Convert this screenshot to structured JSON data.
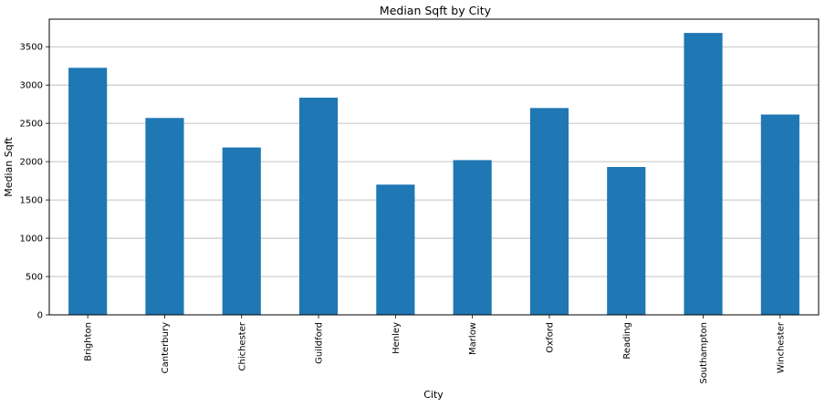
{
  "chart_data": {
    "type": "bar",
    "title": "Median Sqft by City",
    "xlabel": "City",
    "ylabel": "Median Sqft",
    "categories": [
      "Brighton",
      "Canterbury",
      "Chichester",
      "Guildford",
      "Henley",
      "Marlow",
      "Oxford",
      "Reading",
      "Southampton",
      "Winchester"
    ],
    "values": [
      3225,
      2570,
      2185,
      2835,
      1700,
      2020,
      2700,
      1930,
      3680,
      2615
    ],
    "ylim": [
      0,
      3860
    ],
    "yticks": [
      0,
      500,
      1000,
      1500,
      2000,
      2500,
      3000,
      3500
    ],
    "grid": "y",
    "bar_color": "#1f77b4",
    "grid_color": "#b0b0b0"
  }
}
